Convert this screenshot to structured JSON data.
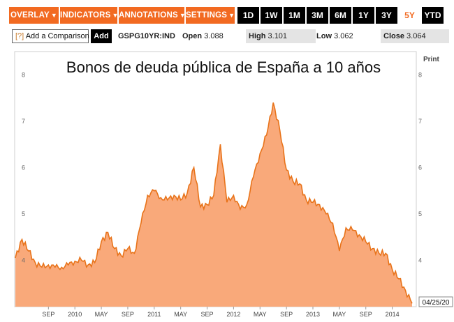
{
  "toolbar": {
    "menus": [
      "OVERLAY",
      "INDICATORS",
      "ANNOTATIONS",
      "SETTINGS"
    ],
    "ranges": [
      "1D",
      "1W",
      "1M",
      "3M",
      "6M",
      "1Y",
      "3Y",
      "5Y",
      "YTD"
    ],
    "active_range": "5Y",
    "accent_color": "#f26a21"
  },
  "quote": {
    "compare_prefix": "[?]",
    "compare_label": "Add a Comparison",
    "add_label": "Add",
    "ticker": "GSPG10YR:IND",
    "open_label": "Open",
    "open_value": "3.088",
    "high_label": "High",
    "high_value": "3.101",
    "low_label": "Low",
    "low_value": "3.062",
    "close_label": "Close",
    "close_value": "3.064"
  },
  "print_label": "Print",
  "end_date_label": "04/25/20",
  "chart_data": {
    "type": "area",
    "title": "Bonos de deuda pública de España a 10 años",
    "xlabel": "",
    "ylabel": "",
    "ylim": [
      3,
      8.5
    ],
    "grid": false,
    "fill_color": "#f9a97a",
    "line_color": "#e8731a",
    "x_tick_labels": [
      "SEP",
      "2010",
      "MAY",
      "SEP",
      "2011",
      "MAY",
      "SEP",
      "2012",
      "MAY",
      "SEP",
      "2013",
      "MAY",
      "SEP",
      "2014"
    ],
    "y_tick_labels": [
      "4",
      "5",
      "6",
      "7",
      "8"
    ],
    "x": [
      "2009-04",
      "2009-05",
      "2009-06",
      "2009-07",
      "2009-08",
      "2009-09",
      "2009-10",
      "2009-11",
      "2009-12",
      "2010-01",
      "2010-02",
      "2010-03",
      "2010-04",
      "2010-05",
      "2010-06",
      "2010-07",
      "2010-08",
      "2010-09",
      "2010-10",
      "2010-11",
      "2010-12",
      "2011-01",
      "2011-02",
      "2011-03",
      "2011-04",
      "2011-05",
      "2011-06",
      "2011-07",
      "2011-08",
      "2011-09",
      "2011-10",
      "2011-11",
      "2011-12",
      "2012-01",
      "2012-02",
      "2012-03",
      "2012-04",
      "2012-05",
      "2012-06",
      "2012-07",
      "2012-08",
      "2012-09",
      "2012-10",
      "2012-11",
      "2012-12",
      "2013-01",
      "2013-02",
      "2013-03",
      "2013-04",
      "2013-05",
      "2013-06",
      "2013-07",
      "2013-08",
      "2013-09",
      "2013-10",
      "2013-11",
      "2013-12",
      "2014-01",
      "2014-02",
      "2014-03",
      "2014-04"
    ],
    "values": [
      4.05,
      4.45,
      4.2,
      3.95,
      3.85,
      3.9,
      3.85,
      3.85,
      3.9,
      3.98,
      4.0,
      3.9,
      3.95,
      4.4,
      4.6,
      4.25,
      4.1,
      4.25,
      4.15,
      4.8,
      5.4,
      5.5,
      5.35,
      5.3,
      5.4,
      5.3,
      5.45,
      6.0,
      5.15,
      5.2,
      5.4,
      6.5,
      5.25,
      5.4,
      5.1,
      5.2,
      5.8,
      6.3,
      6.7,
      7.4,
      6.8,
      5.95,
      5.7,
      5.65,
      5.3,
      5.25,
      5.2,
      5.0,
      4.8,
      4.2,
      4.7,
      4.65,
      4.55,
      4.4,
      4.25,
      4.15,
      4.15,
      3.8,
      3.6,
      3.35,
      3.07
    ]
  }
}
